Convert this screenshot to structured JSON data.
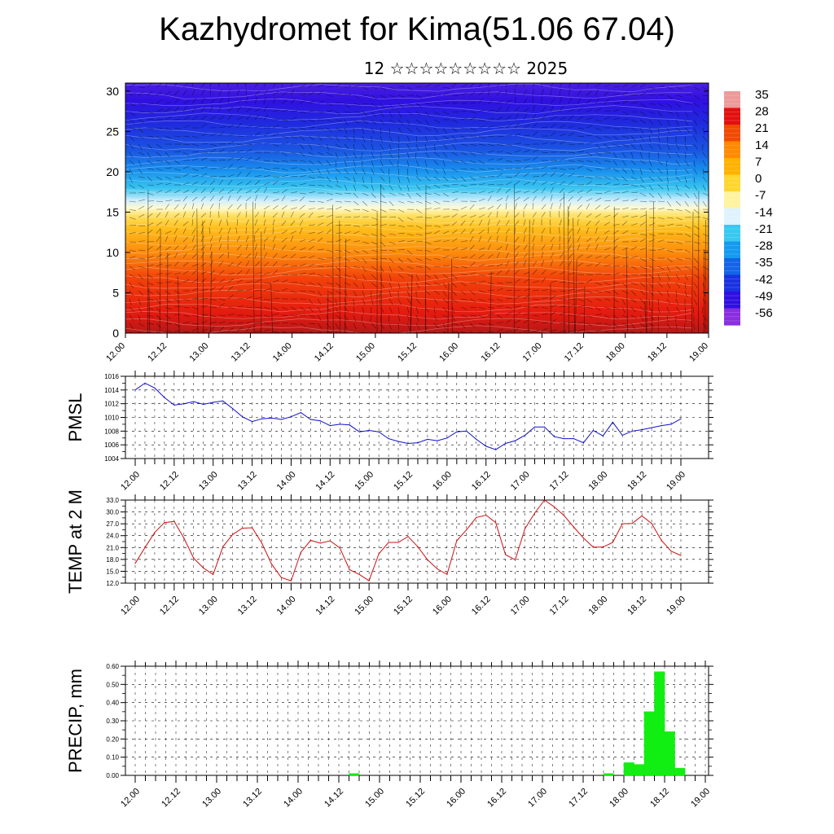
{
  "title": "Kazhydromet for Kima(51.06 67.04)",
  "subtitle": "12 ☆☆☆☆☆☆☆☆☆ 2025",
  "time_labels": [
    "12.00",
    "12.12",
    "13.00",
    "13.12",
    "14.00",
    "14.12",
    "15.00",
    "15.12",
    "16.00",
    "16.12",
    "17.00",
    "17.12",
    "18.00",
    "18.12",
    "19.00"
  ],
  "colors": {
    "pmsl_line": "#1010c8",
    "temp_line": "#d01010",
    "precip_bar": "#11ee11"
  },
  "chart_data": [
    {
      "type": "heatmap",
      "name": "vertical cross-section",
      "ylim": [
        0,
        31
      ],
      "y_ticks": [
        0,
        5,
        10,
        15,
        20,
        25,
        30
      ],
      "colorbar_labels": [
        "35",
        "28",
        "21",
        "14",
        "7",
        "0",
        "-7",
        "-14",
        "-21",
        "-28",
        "-35",
        "-42",
        "-49",
        "-56"
      ],
      "colorbar_colors": [
        "#ee9a9a",
        "#e31010",
        "#f04a00",
        "#ff8a00",
        "#ffb200",
        "#ffd630",
        "#fff3a0",
        "#dff3ff",
        "#38c8f0",
        "#159af0",
        "#1464e6",
        "#1a32e0",
        "#3010e0",
        "#8a2ee0"
      ]
    },
    {
      "type": "line",
      "ylabel": "PMSL",
      "ylim": [
        1004,
        1016
      ],
      "y_ticks": [
        "1016",
        "1014",
        "1012",
        "1010",
        "1008",
        "1006",
        "1004"
      ],
      "values": [
        1014.0,
        1015.0,
        1014.3,
        1012.9,
        1011.8,
        1012.0,
        1012.3,
        1011.9,
        1012.2,
        1012.4,
        1011.3,
        1010.1,
        1009.4,
        1009.8,
        1009.9,
        1009.7,
        1010.1,
        1010.7,
        1009.7,
        1009.5,
        1008.8,
        1009.0,
        1008.9,
        1007.9,
        1008.1,
        1007.9,
        1006.9,
        1006.5,
        1006.2,
        1006.3,
        1006.8,
        1006.6,
        1007.0,
        1007.9,
        1008.0,
        1006.8,
        1005.8,
        1005.3,
        1006.2,
        1006.6,
        1007.4,
        1008.6,
        1008.6,
        1007.2,
        1006.9,
        1006.9,
        1006.3,
        1008.1,
        1007.3,
        1009.3,
        1007.4,
        1008.0,
        1008.2,
        1008.5,
        1008.8,
        1009.0,
        1009.8
      ]
    },
    {
      "type": "line",
      "ylabel": "TEMP at 2 M",
      "ylim": [
        12,
        33
      ],
      "y_ticks": [
        "33.0",
        "30.0",
        "27.0",
        "24.0",
        "21.0",
        "18.0",
        "15.0",
        "12.0"
      ],
      "values": [
        17.0,
        21.0,
        24.8,
        27.3,
        27.6,
        23.4,
        18.3,
        15.8,
        14.2,
        21.2,
        24.3,
        25.9,
        26.0,
        22.1,
        16.8,
        13.4,
        12.6,
        19.8,
        22.8,
        22.1,
        22.7,
        20.9,
        15.4,
        14.2,
        12.6,
        19.4,
        22.3,
        22.3,
        23.8,
        21.2,
        17.9,
        15.6,
        14.2,
        22.7,
        25.5,
        28.6,
        29.2,
        27.3,
        19.2,
        17.9,
        25.8,
        29.7,
        33.0,
        31.3,
        29.1,
        26.2,
        23.4,
        21.1,
        21.1,
        22.3,
        27.0,
        27.1,
        29.0,
        27.1,
        22.8,
        20.1,
        19.0
      ]
    },
    {
      "type": "bar",
      "ylabel": "PRECIP, mm",
      "ylim": [
        0,
        0.6
      ],
      "y_ticks": [
        "0.60",
        "0.50",
        "0.40",
        "0.30",
        "0.20",
        "0.10",
        "0.00"
      ],
      "bars": [
        {
          "t": 21.5,
          "v": 0.01
        },
        {
          "t": 46.5,
          "v": 0.01
        },
        {
          "t": 48.5,
          "v": 0.07
        },
        {
          "t": 49.5,
          "v": 0.06
        },
        {
          "t": 50.5,
          "v": 0.35
        },
        {
          "t": 51.5,
          "v": 0.57
        },
        {
          "t": 52.5,
          "v": 0.24
        },
        {
          "t": 53.5,
          "v": 0.04
        }
      ]
    }
  ]
}
